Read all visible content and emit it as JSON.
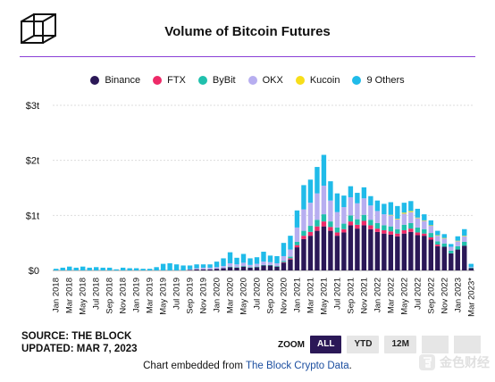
{
  "title": "Volume of Bitcoin Futures",
  "source_line": "SOURCE: THE BLOCK",
  "updated_line": "UPDATED: MAR 7, 2023",
  "zoom": {
    "label": "ZOOM",
    "buttons": [
      "ALL",
      "YTD",
      "12M"
    ],
    "active": "ALL"
  },
  "embed": {
    "prefix": "Chart embedded from ",
    "link": "The Block Crypto Data",
    "suffix": "."
  },
  "watermark": "金色财经",
  "colors": {
    "Binance": "#2b1857",
    "FTX": "#ee2a68",
    "ByBit": "#20c0ad",
    "OKX": "#b7aef0",
    "Kucoin": "#f7de1a",
    "9 Others": "#20bbe9",
    "rule": "#8a3fd6"
  },
  "chart_data": {
    "type": "bar",
    "stacked": true,
    "title": "Volume of Bitcoin Futures",
    "y_tick_labels": [
      "$0",
      "$1t",
      "$2t",
      "$3t"
    ],
    "y_ticks": [
      0,
      1,
      2,
      3
    ],
    "ylim": [
      0,
      3
    ],
    "y_unit": "trillions USD",
    "x_tick_labels": [
      "Jan 2018",
      "Mar 2018",
      "May 2018",
      "Jul 2018",
      "Sep 2018",
      "Nov 2018",
      "Jan 2019",
      "Mar 2019",
      "May 2019",
      "Jul 2019",
      "Sep 2019",
      "Nov 2019",
      "Jan 2020",
      "Mar 2020",
      "May 2020",
      "Jul 2020",
      "Sep 2020",
      "Nov 2020",
      "Jan 2021",
      "Mar 2021",
      "May 2021",
      "Jul 2021",
      "Sep 2021",
      "Nov 2021",
      "Jan 2022",
      "Mar 2022",
      "May 2022",
      "Jul 2022",
      "Sep 2022",
      "Nov 2022",
      "Jan 2023",
      "Mar 2023*"
    ],
    "legend_position": "top",
    "grid": true,
    "categories": [
      "Jan 2018",
      "Feb 2018",
      "Mar 2018",
      "Apr 2018",
      "May 2018",
      "Jun 2018",
      "Jul 2018",
      "Aug 2018",
      "Sep 2018",
      "Oct 2018",
      "Nov 2018",
      "Dec 2018",
      "Jan 2019",
      "Feb 2019",
      "Mar 2019",
      "Apr 2019",
      "May 2019",
      "Jun 2019",
      "Jul 2019",
      "Aug 2019",
      "Sep 2019",
      "Oct 2019",
      "Nov 2019",
      "Dec 2019",
      "Jan 2020",
      "Feb 2020",
      "Mar 2020",
      "Apr 2020",
      "May 2020",
      "Jun 2020",
      "Jul 2020",
      "Aug 2020",
      "Sep 2020",
      "Oct 2020",
      "Nov 2020",
      "Dec 2020",
      "Jan 2021",
      "Feb 2021",
      "Mar 2021",
      "Apr 2021",
      "May 2021",
      "Jun 2021",
      "Jul 2021",
      "Aug 2021",
      "Sep 2021",
      "Oct 2021",
      "Nov 2021",
      "Dec 2021",
      "Jan 2022",
      "Feb 2022",
      "Mar 2022",
      "Apr 2022",
      "May 2022",
      "Jun 2022",
      "Jul 2022",
      "Aug 2022",
      "Sep 2022",
      "Oct 2022",
      "Nov 2022",
      "Dec 2022",
      "Jan 2023",
      "Feb 2023",
      "Mar 2023*"
    ],
    "series": [
      {
        "name": "Binance",
        "color": "#2b1857",
        "values": [
          0,
          0,
          0,
          0,
          0,
          0,
          0,
          0,
          0,
          0,
          0,
          0,
          0,
          0,
          0,
          0,
          0,
          0,
          0,
          0,
          0.01,
          0.02,
          0.02,
          0.02,
          0.03,
          0.04,
          0.06,
          0.05,
          0.07,
          0.05,
          0.06,
          0.09,
          0.09,
          0.07,
          0.14,
          0.2,
          0.42,
          0.57,
          0.63,
          0.72,
          0.8,
          0.72,
          0.63,
          0.69,
          0.82,
          0.76,
          0.82,
          0.75,
          0.7,
          0.67,
          0.65,
          0.62,
          0.67,
          0.7,
          0.64,
          0.63,
          0.56,
          0.44,
          0.43,
          0.31,
          0.38,
          0.45,
          0.04
        ]
      },
      {
        "name": "FTX",
        "color": "#ee2a68",
        "values": [
          0,
          0,
          0,
          0,
          0,
          0,
          0,
          0,
          0,
          0,
          0,
          0,
          0,
          0,
          0,
          0,
          0,
          0,
          0,
          0,
          0,
          0,
          0,
          0,
          0,
          0,
          0,
          0,
          0,
          0,
          0,
          0,
          0,
          0,
          0.01,
          0.02,
          0.04,
          0.06,
          0.07,
          0.08,
          0.09,
          0.07,
          0.06,
          0.06,
          0.07,
          0.07,
          0.08,
          0.07,
          0.06,
          0.06,
          0.06,
          0.05,
          0.06,
          0.06,
          0.05,
          0.04,
          0.04,
          0.03,
          0,
          0,
          0,
          0,
          0
        ]
      },
      {
        "name": "ByBit",
        "color": "#20c0ad",
        "values": [
          0,
          0,
          0,
          0,
          0,
          0,
          0,
          0,
          0,
          0,
          0,
          0,
          0,
          0,
          0,
          0,
          0,
          0,
          0,
          0,
          0,
          0,
          0,
          0,
          0,
          0,
          0.01,
          0.01,
          0.01,
          0.01,
          0.01,
          0.01,
          0.01,
          0.01,
          0.02,
          0.03,
          0.06,
          0.09,
          0.11,
          0.12,
          0.13,
          0.1,
          0.09,
          0.1,
          0.11,
          0.1,
          0.11,
          0.1,
          0.1,
          0.09,
          0.09,
          0.08,
          0.1,
          0.1,
          0.09,
          0.08,
          0.08,
          0.06,
          0.06,
          0.05,
          0.06,
          0.07,
          0.01
        ]
      },
      {
        "name": "OKX",
        "color": "#b7aef0",
        "values": [
          0,
          0,
          0,
          0,
          0,
          0,
          0,
          0,
          0,
          0,
          0,
          0,
          0,
          0,
          0,
          0,
          0,
          0,
          0,
          0,
          0.01,
          0.02,
          0.03,
          0.03,
          0.03,
          0.04,
          0.06,
          0.05,
          0.06,
          0.04,
          0.05,
          0.06,
          0.05,
          0.05,
          0.09,
          0.13,
          0.26,
          0.39,
          0.42,
          0.48,
          0.52,
          0.38,
          0.28,
          0.3,
          0.33,
          0.29,
          0.3,
          0.26,
          0.22,
          0.2,
          0.2,
          0.18,
          0.2,
          0.2,
          0.17,
          0.15,
          0.13,
          0.1,
          0.09,
          0.07,
          0.09,
          0.1,
          0.01
        ]
      },
      {
        "name": "Kucoin",
        "color": "#f7de1a",
        "values": [
          0,
          0,
          0,
          0,
          0,
          0,
          0,
          0,
          0,
          0,
          0,
          0,
          0,
          0,
          0,
          0,
          0,
          0,
          0,
          0,
          0,
          0,
          0,
          0,
          0,
          0,
          0,
          0,
          0,
          0,
          0,
          0,
          0,
          0,
          0,
          0,
          0,
          0,
          0,
          0,
          0,
          0,
          0,
          0,
          0,
          0,
          0,
          0,
          0,
          0,
          0.01,
          0.01,
          0.02,
          0.02,
          0.01,
          0.01,
          0.01,
          0.01,
          0.01,
          0,
          0.01,
          0.01,
          0
        ]
      },
      {
        "name": "9 Others",
        "color": "#20bbe9",
        "values": [
          0.03,
          0.05,
          0.07,
          0.05,
          0.07,
          0.05,
          0.06,
          0.05,
          0.05,
          0.02,
          0.05,
          0.04,
          0.04,
          0.03,
          0.03,
          0.06,
          0.12,
          0.13,
          0.11,
          0.09,
          0.07,
          0.07,
          0.06,
          0.06,
          0.1,
          0.14,
          0.2,
          0.12,
          0.16,
          0.12,
          0.12,
          0.18,
          0.12,
          0.13,
          0.24,
          0.25,
          0.31,
          0.44,
          0.42,
          0.48,
          0.56,
          0.35,
          0.34,
          0.21,
          0.2,
          0.19,
          0.2,
          0.17,
          0.19,
          0.19,
          0.23,
          0.23,
          0.18,
          0.18,
          0.16,
          0.11,
          0.09,
          0.08,
          0.07,
          0.05,
          0.08,
          0.12,
          0.06
        ]
      }
    ]
  }
}
